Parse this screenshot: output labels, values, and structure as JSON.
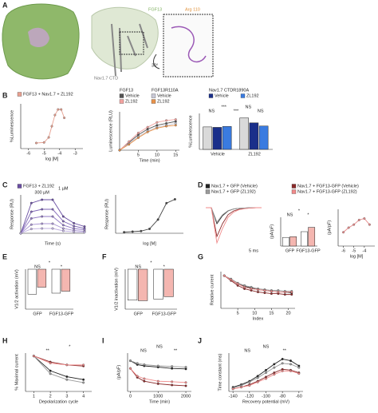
{
  "panels": [
    "A",
    "B",
    "C",
    "D",
    "E",
    "F",
    "G",
    "H",
    "I",
    "J"
  ],
  "image_labels": [
    "FGF13",
    "Arg 110",
    "Nav1.7 CTD",
    "30°"
  ],
  "chart_data": [
    {
      "type": "line",
      "y_label": "%Luminescence",
      "x_label": "log [M]",
      "xlim": [
        -6.5,
        -2.5
      ],
      "ylim": [
        0,
        160
      ],
      "xticks": [
        -6,
        -5,
        -4,
        -3
      ],
      "x": [
        -5.5,
        -5,
        -4.7,
        -4.5,
        -4.3,
        -4.1,
        -3.9,
        -3.7
      ],
      "series": [
        {
          "name": "FGF13 + Nav1.7 + ZL192",
          "color": "#e8a090",
          "values": [
            20,
            22,
            40,
            80,
            120,
            140,
            140,
            110
          ]
        }
      ]
    },
    {
      "type": "line",
      "y_label": "Luminescence (RLU)",
      "x_label": "Time (min)",
      "xlim": [
        0,
        16
      ],
      "ylim": [
        0,
        20
      ],
      "xticks": [
        5,
        10,
        15
      ],
      "legend_groups": [
        "FGF13",
        "FGF13R110A"
      ],
      "x": [
        0,
        2.5,
        5,
        7.5,
        10,
        12.5,
        15
      ],
      "series": [
        {
          "name": "Vehicle",
          "color": "#555555",
          "values": [
            0,
            4,
            8,
            11,
            13,
            14,
            15
          ]
        },
        {
          "name": "Vehicle",
          "color": "#c9c9d6",
          "values": [
            0,
            3.5,
            7,
            10,
            12,
            13,
            14
          ]
        },
        {
          "name": "ZL192",
          "color": "#f2a3a0",
          "values": [
            0,
            4.5,
            9,
            12,
            14.5,
            15.5,
            16
          ]
        },
        {
          "name": "ZL192",
          "color": "#e8924a",
          "values": [
            0,
            3,
            6.5,
            9.5,
            11.5,
            12.5,
            13
          ]
        }
      ]
    },
    {
      "type": "bar",
      "y_label": "%Luminescence",
      "legend_title": "Nav1.7 CTDR1890A",
      "ylim": [
        0,
        160
      ],
      "categories": [
        "Vehicle",
        "ZL192"
      ],
      "series": [
        {
          "color": "#d9d9d9",
          "values": [
            100,
            140
          ]
        },
        {
          "name": "Vehicle",
          "color": "#1a2f8a",
          "values": [
            98,
            118
          ]
        },
        {
          "name": "ZL192",
          "color": "#3a7be0",
          "values": [
            102,
            104
          ]
        }
      ],
      "annotations": [
        "NS",
        "***",
        "***",
        "NS",
        "NS"
      ]
    },
    {
      "type": "line",
      "y_label": "Response (RU)",
      "x_label": "Time (s)",
      "xlim": [
        0,
        120
      ],
      "ylim": [
        0,
        80
      ],
      "x": [
        0,
        20,
        40,
        60,
        80,
        100,
        120
      ],
      "series": [
        {
          "name": "FGF13 + ZL192",
          "color": "#6a4fa3",
          "values": [
            0,
            63,
            70,
            70,
            35,
            21,
            14
          ]
        },
        {
          "color": "#7d63b5",
          "values": [
            0,
            45,
            50,
            50,
            25,
            15,
            10
          ]
        },
        {
          "color": "#927ac4",
          "values": [
            0,
            31,
            35,
            35,
            17,
            10,
            7
          ]
        },
        {
          "color": "#a995d3",
          "values": [
            0,
            18,
            20,
            20,
            10,
            6,
            4
          ]
        },
        {
          "color": "#c2b3e2",
          "values": [
            0,
            9,
            10,
            10,
            5,
            3,
            2
          ]
        }
      ],
      "annotations": [
        "300 µM",
        "1 µM"
      ]
    },
    {
      "type": "line",
      "y_label": "Response (RU)",
      "x_label": "log [M]",
      "xlim": [
        -7,
        -3
      ],
      "ylim": [
        0,
        70
      ],
      "x": [
        -6.5,
        -6,
        -5.5,
        -5,
        -4.5,
        -4,
        -3.5
      ],
      "series": [
        {
          "color": "#444444",
          "values": [
            2,
            3,
            4,
            8,
            25,
            55,
            62
          ]
        }
      ]
    },
    {
      "type": "line",
      "ylim": [
        -120,
        10
      ],
      "xlim": [
        0,
        10
      ],
      "x": [
        0,
        1,
        2,
        3,
        4,
        5,
        6,
        7,
        8,
        9,
        10
      ],
      "series": [
        {
          "name": "Nav1.7 + GFP (Vehicle)",
          "color": "#222222",
          "values": [
            0,
            0,
            -50,
            -25,
            -10,
            -4,
            -2,
            -1,
            0,
            0,
            0
          ]
        },
        {
          "name": "Nav1.7 + FGF13-GFP (Vehicle)",
          "color": "#8b2a2a",
          "values": [
            0,
            0,
            -90,
            -50,
            -22,
            -10,
            -5,
            -2,
            -1,
            0,
            0
          ]
        },
        {
          "name": "Nav1.7 + GFP (ZL192)",
          "color": "#9a9a9a",
          "values": [
            0,
            0,
            -45,
            -22,
            -9,
            -4,
            -2,
            -1,
            0,
            0,
            0
          ]
        },
        {
          "name": "Nav1.7 + FGF13-GFP (ZL192)",
          "color": "#f08a8a",
          "values": [
            0,
            0,
            -110,
            -65,
            -30,
            -14,
            -6,
            -3,
            -1,
            0,
            0
          ]
        }
      ],
      "annotations": [
        "5 ms"
      ]
    },
    {
      "type": "bar",
      "y_label": "(pA/pF)",
      "ylim": [
        0,
        200
      ],
      "categories": [
        "GFP",
        "FGF13-GFP"
      ],
      "series": [
        {
          "color": "#ffffff",
          "values": [
            60,
            100
          ]
        },
        {
          "color": "#f4b6b0",
          "values": [
            65,
            130
          ]
        }
      ],
      "annotations": [
        "NS",
        "*",
        "*"
      ]
    },
    {
      "type": "line",
      "y_label": "(pA/pF)",
      "x_label": "log [M]",
      "xlim": [
        -6.5,
        -3
      ],
      "ylim": [
        50,
        170
      ],
      "xticks": [
        -6,
        -5,
        -4
      ],
      "x": [
        -6,
        -5.5,
        -5,
        -4.5,
        -4,
        -3.5
      ],
      "series": [
        {
          "color": "#e88a8a",
          "values": [
            95,
            110,
            120,
            135,
            140,
            120
          ]
        }
      ]
    },
    {
      "type": "bar",
      "y_label": "V1/2 activation (mV)",
      "ylim": [
        -40,
        0
      ],
      "categories": [
        "GFP",
        "FGF13-GFP"
      ],
      "series": [
        {
          "color": "#ffffff",
          "values": [
            -25,
            -24
          ]
        },
        {
          "color": "#f4b6b0",
          "values": [
            -18,
            -22
          ]
        }
      ],
      "annotations": [
        "NS",
        "*",
        "*"
      ]
    },
    {
      "type": "bar",
      "y_label": "V1/2 inactivation (mV)",
      "ylim": [
        -80,
        0
      ],
      "categories": [
        "GFP",
        "FGF13-GFP"
      ],
      "series": [
        {
          "color": "#ffffff",
          "values": [
            -62,
            -60
          ]
        },
        {
          "color": "#f4b6b0",
          "values": [
            -63,
            -55
          ]
        }
      ],
      "annotations": [
        "NS",
        "*",
        "*"
      ]
    },
    {
      "type": "line",
      "y_label": "Relative current",
      "x_label": "Index",
      "xlim": [
        0,
        22
      ],
      "ylim": [
        0.6,
        1.05
      ],
      "xticks": [
        5,
        10,
        15,
        20
      ],
      "x": [
        1,
        3,
        5,
        7,
        9,
        11,
        13,
        15,
        17,
        19,
        21
      ],
      "series": [
        {
          "color": "#222222",
          "values": [
            1,
            0.95,
            0.9,
            0.87,
            0.85,
            0.83,
            0.82,
            0.81,
            0.8,
            0.8,
            0.79
          ]
        },
        {
          "color": "#9a9a9a",
          "values": [
            1,
            0.96,
            0.91,
            0.88,
            0.86,
            0.84,
            0.83,
            0.82,
            0.82,
            0.81,
            0.81
          ]
        },
        {
          "color": "#8b2a2a",
          "values": [
            1,
            0.94,
            0.88,
            0.84,
            0.82,
            0.8,
            0.79,
            0.78,
            0.78,
            0.77,
            0.77
          ]
        },
        {
          "color": "#f08a8a",
          "values": [
            1,
            0.95,
            0.9,
            0.86,
            0.84,
            0.83,
            0.82,
            0.81,
            0.8,
            0.8,
            0.8
          ]
        }
      ]
    },
    {
      "type": "line",
      "y_label": "% Maximal current",
      "x_label": "Depolarization cycle",
      "xlim": [
        0.5,
        4.5
      ],
      "ylim": [
        40,
        105
      ],
      "xticks": [
        1,
        2,
        3,
        4
      ],
      "x": [
        1,
        2,
        3,
        4
      ],
      "series": [
        {
          "color": "#222222",
          "values": [
            100,
            75,
            65,
            60
          ]
        },
        {
          "color": "#9a9a9a",
          "values": [
            100,
            70,
            60,
            55
          ]
        },
        {
          "color": "#8b2a2a",
          "values": [
            100,
            90,
            85,
            83
          ]
        },
        {
          "color": "#f08a8a",
          "values": [
            100,
            88,
            85,
            85
          ]
        }
      ],
      "annotations": [
        "**",
        "*"
      ]
    },
    {
      "type": "line",
      "y_label": "(pA/pF)",
      "x_label": "Time (min)",
      "xlim": [
        -100,
        2200
      ],
      "ylim": [
        -150,
        0
      ],
      "xticks": [
        0,
        1000,
        2000
      ],
      "x": [
        0,
        250,
        500,
        1000,
        1500,
        2000
      ],
      "series": [
        {
          "color": "#222222",
          "values": [
            -30,
            -45,
            -50,
            -55,
            -60,
            -62
          ]
        },
        {
          "color": "#9a9a9a",
          "values": [
            -30,
            -40,
            -45,
            -50,
            -52,
            -55
          ]
        },
        {
          "color": "#8b2a2a",
          "values": [
            -60,
            -95,
            -110,
            -120,
            -125,
            -128
          ]
        },
        {
          "color": "#f08a8a",
          "values": [
            -60,
            -90,
            -100,
            -110,
            -112,
            -115
          ]
        }
      ],
      "annotations": [
        "NS",
        "NS",
        "**"
      ]
    },
    {
      "type": "line",
      "y_label": "Time constant (ms)",
      "x_label": "Recovery potential (mV)",
      "xlim": [
        -145,
        -55
      ],
      "ylim": [
        0,
        45
      ],
      "xticks": [
        -140,
        -120,
        -100,
        -80,
        -60
      ],
      "x": [
        -140,
        -130,
        -120,
        -110,
        -100,
        -90,
        -80,
        -70,
        -60
      ],
      "series": [
        {
          "color": "#222222",
          "values": [
            5,
            8,
            12,
            18,
            25,
            32,
            38,
            36,
            30
          ]
        },
        {
          "color": "#9a9a9a",
          "values": [
            4,
            7,
            11,
            16,
            22,
            28,
            33,
            32,
            28
          ]
        },
        {
          "color": "#8b2a2a",
          "values": [
            3,
            5,
            8,
            12,
            17,
            22,
            26,
            25,
            22
          ]
        },
        {
          "color": "#f08a8a",
          "values": [
            3,
            5,
            7,
            11,
            15,
            20,
            24,
            24,
            21
          ]
        }
      ],
      "annotations": [
        "NS",
        "NS",
        "**"
      ]
    }
  ]
}
